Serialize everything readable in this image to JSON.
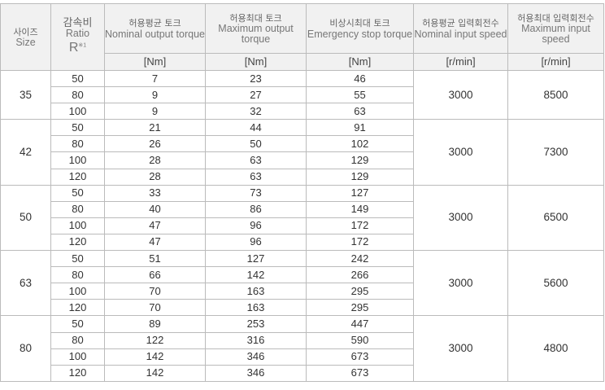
{
  "header": {
    "size": {
      "ko": "사이즈",
      "en": "Size"
    },
    "ratio": {
      "ko": "감속비",
      "en": "Ratio",
      "symbol": "R",
      "note": "※1"
    },
    "nominal_torque": {
      "ko": "허용평균 토크",
      "en": "Nominal output torque",
      "unit": "[Nm]"
    },
    "max_torque": {
      "ko": "허용최대 토크",
      "en": "Maximum output torque",
      "unit": "[Nm]"
    },
    "emergency_torque": {
      "ko": "비상시최대 토크",
      "en": "Emergency stop torque",
      "unit": "[Nm]"
    },
    "nominal_speed": {
      "ko": "허용평균 입력회전수",
      "en": "Nominal input speed",
      "unit": "[r/min]"
    },
    "max_speed": {
      "ko": "허용최대 입력회전수",
      "en": "Maximum input speed",
      "unit": "[r/min]"
    }
  },
  "groups": [
    {
      "size": "35",
      "nominal_speed": "3000",
      "max_speed": "8500",
      "rows": [
        [
          "50",
          "7",
          "23",
          "46"
        ],
        [
          "80",
          "9",
          "27",
          "55"
        ],
        [
          "100",
          "9",
          "32",
          "63"
        ]
      ]
    },
    {
      "size": "42",
      "nominal_speed": "3000",
      "max_speed": "7300",
      "rows": [
        [
          "50",
          "21",
          "44",
          "91"
        ],
        [
          "80",
          "26",
          "50",
          "102"
        ],
        [
          "100",
          "28",
          "63",
          "129"
        ],
        [
          "120",
          "28",
          "63",
          "129"
        ]
      ]
    },
    {
      "size": "50",
      "nominal_speed": "3000",
      "max_speed": "6500",
      "rows": [
        [
          "50",
          "33",
          "73",
          "127"
        ],
        [
          "80",
          "40",
          "86",
          "149"
        ],
        [
          "100",
          "47",
          "96",
          "172"
        ],
        [
          "120",
          "47",
          "96",
          "172"
        ]
      ]
    },
    {
      "size": "63",
      "nominal_speed": "3000",
      "max_speed": "5600",
      "rows": [
        [
          "50",
          "51",
          "127",
          "242"
        ],
        [
          "80",
          "66",
          "142",
          "266"
        ],
        [
          "100",
          "70",
          "163",
          "295"
        ],
        [
          "120",
          "70",
          "163",
          "295"
        ]
      ]
    },
    {
      "size": "80",
      "nominal_speed": "3000",
      "max_speed": "4800",
      "rows": [
        [
          "50",
          "89",
          "253",
          "447"
        ],
        [
          "80",
          "122",
          "316",
          "590"
        ],
        [
          "100",
          "142",
          "346",
          "673"
        ],
        [
          "120",
          "142",
          "346",
          "673"
        ]
      ]
    }
  ]
}
